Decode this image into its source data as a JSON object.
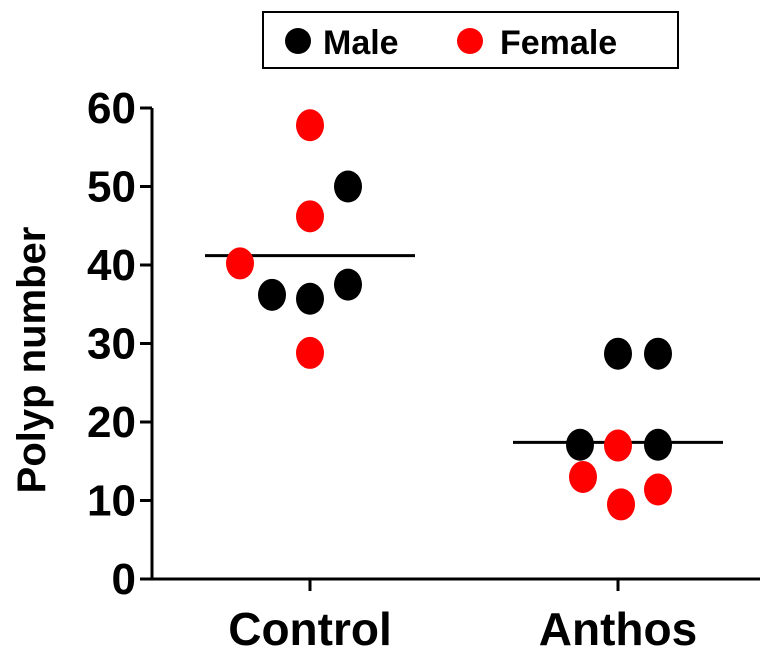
{
  "chart_data": {
    "type": "scatter",
    "categories": [
      "Control",
      "Anthos"
    ],
    "ylabel": "Polyp number",
    "xlabel": "",
    "title": "",
    "ylim": [
      0,
      60
    ],
    "yticks": [
      "0",
      "10",
      "20",
      "30",
      "40",
      "50",
      "60"
    ],
    "legend": {
      "placement": "top",
      "entries": [
        "Male",
        "Female"
      ]
    },
    "colors": {
      "Male": "#000000",
      "Female": "#ff0000"
    },
    "series": [
      {
        "name": "Male",
        "points": [
          {
            "category": "Control",
            "y": 50.0
          },
          {
            "category": "Control",
            "y": 37.5
          },
          {
            "category": "Control",
            "y": 36.2
          },
          {
            "category": "Control",
            "y": 35.7
          },
          {
            "category": "Anthos",
            "y": 28.7
          },
          {
            "category": "Anthos",
            "y": 28.7
          },
          {
            "category": "Anthos",
            "y": 17.1
          },
          {
            "category": "Anthos",
            "y": 17.1
          }
        ]
      },
      {
        "name": "Female",
        "points": [
          {
            "category": "Control",
            "y": 57.8
          },
          {
            "category": "Control",
            "y": 46.2
          },
          {
            "category": "Control",
            "y": 40.2
          },
          {
            "category": "Control",
            "y": 28.8
          },
          {
            "category": "Anthos",
            "y": 17.0
          },
          {
            "category": "Anthos",
            "y": 13.0
          },
          {
            "category": "Anthos",
            "y": 11.4
          },
          {
            "category": "Anthos",
            "y": 9.5
          }
        ]
      }
    ],
    "medians": [
      {
        "category": "Control",
        "y": 41.2
      },
      {
        "category": "Anthos",
        "y": 17.4
      }
    ]
  }
}
